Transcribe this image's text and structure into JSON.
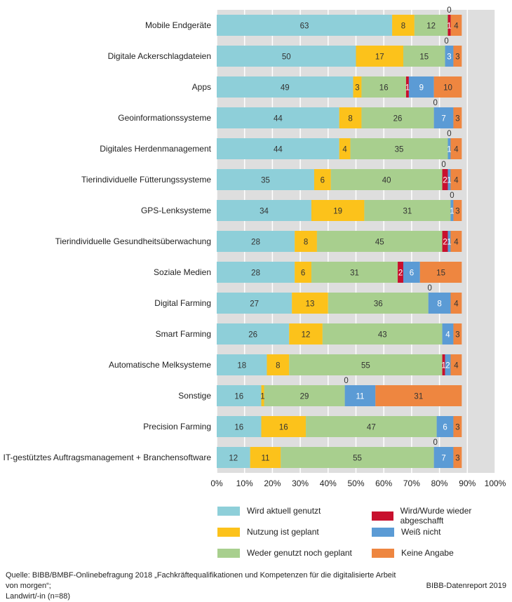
{
  "chart_data": {
    "type": "bar",
    "orientation": "horizontal",
    "stacked": true,
    "percent": true,
    "x_ticks": [
      "0%",
      "10%",
      "20%",
      "30%",
      "40%",
      "50%",
      "60%",
      "70%",
      "80%",
      "90%",
      "100%"
    ],
    "xlim": [
      0,
      100
    ],
    "categories": [
      "Mobile Endgeräte",
      "Digitale Ackerschlagdateien",
      "Apps",
      "Geoinformationssysteme",
      "Digitales Herdenmanagement",
      "Tierindividuelle Fütterungssysteme",
      "GPS-Lenksysteme",
      "Tierindividuelle Gesundheitsüberwachung",
      "Soziale Medien",
      "Digital Farming",
      "Smart Farming",
      "Automatische Melksysteme",
      "Sonstige",
      "Precision Farming",
      "IT-gestütztes Auftragsmanagement + Branchensoftware"
    ],
    "series": [
      {
        "name": "Wird aktuell genutzt",
        "color": "#8ecfd9",
        "label_color": "#333333",
        "values": [
          63,
          50,
          49,
          44,
          44,
          35,
          34,
          28,
          28,
          27,
          26,
          18,
          16,
          16,
          12
        ]
      },
      {
        "name": "Nutzung ist geplant",
        "color": "#fcc21b",
        "label_color": "#333333",
        "values": [
          8,
          17,
          3,
          8,
          4,
          6,
          19,
          8,
          6,
          13,
          12,
          8,
          1,
          16,
          11
        ]
      },
      {
        "name": "Weder genutzt noch geplant",
        "color": "#a8cf8e",
        "label_color": "#333333",
        "values": [
          12,
          15,
          16,
          26,
          35,
          40,
          31,
          45,
          31,
          36,
          43,
          55,
          29,
          47,
          55
        ]
      },
      {
        "name": "Wird/Wurde wieder abgeschafft",
        "color": "#c8102e",
        "label_color": "#ffffff",
        "values": [
          1,
          0,
          1,
          0,
          0,
          2,
          0,
          2,
          2,
          0,
          0,
          1,
          0,
          0,
          0
        ]
      },
      {
        "name": "Weiß nicht",
        "color": "#5b9bd5",
        "label_color": "#ffffff",
        "values": [
          0,
          3,
          9,
          7,
          1,
          1,
          1,
          1,
          6,
          8,
          4,
          2,
          11,
          6,
          7
        ]
      },
      {
        "name": "Keine Angabe",
        "color": "#ee8640",
        "label_color": "#333333",
        "values": [
          4,
          3,
          10,
          3,
          4,
          4,
          3,
          4,
          15,
          4,
          3,
          4,
          31,
          3,
          3
        ]
      }
    ],
    "zero_annotations": [
      "0",
      "0",
      "",
      "0",
      "0",
      "0",
      "0",
      "",
      "",
      "0",
      "",
      "",
      "0",
      "",
      "0"
    ],
    "legend_position": "bottom"
  },
  "footer": {
    "source_line1": "Quelle: BIBB/BMBF-Onlinebefragung 2018 „Fachkräftequalifikationen und Kompetenzen für die digitalisierte Arbeit von morgen“;",
    "source_line2": "Landwirt/-in (n=88)",
    "credit": "BIBB-Datenreport 2019"
  }
}
